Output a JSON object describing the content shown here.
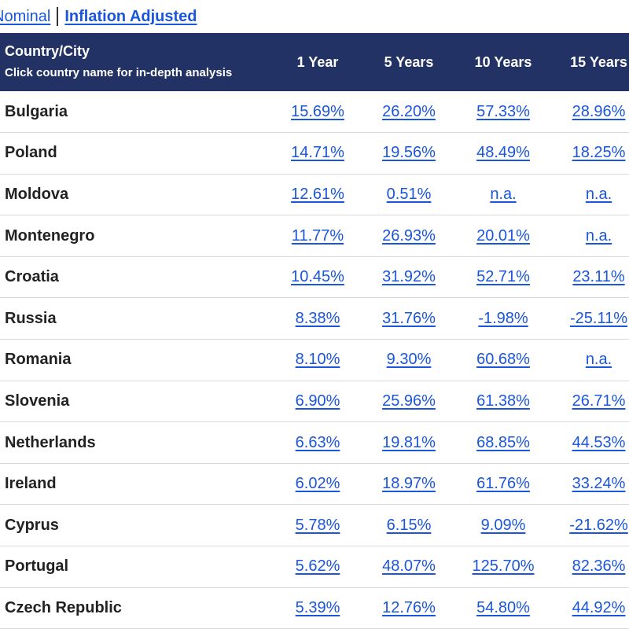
{
  "toggle": {
    "nominal_label": "Nominal",
    "inflation_label": "Inflation Adjusted"
  },
  "table": {
    "header": {
      "country_title": "Country/City",
      "country_subtitle": "Click country name for in-depth analysis",
      "col_1": "1 Year",
      "col_5": "5 Years",
      "col_10": "10 Years",
      "col_15": "15 Years"
    },
    "rows": [
      {
        "country": "Bulgaria",
        "y1": "15.69%",
        "y5": "26.20%",
        "y10": "57.33%",
        "y15": "28.96%"
      },
      {
        "country": "Poland",
        "y1": "14.71%",
        "y5": "19.56%",
        "y10": "48.49%",
        "y15": "18.25%"
      },
      {
        "country": "Moldova",
        "y1": "12.61%",
        "y5": "0.51%",
        "y10": "n.a.",
        "y15": "n.a."
      },
      {
        "country": "Montenegro",
        "y1": "11.77%",
        "y5": "26.93%",
        "y10": "20.01%",
        "y15": "n.a."
      },
      {
        "country": "Croatia",
        "y1": "10.45%",
        "y5": "31.92%",
        "y10": "52.71%",
        "y15": "23.11%"
      },
      {
        "country": "Russia",
        "y1": "8.38%",
        "y5": "31.76%",
        "y10": "-1.98%",
        "y15": "-25.11%"
      },
      {
        "country": "Romania",
        "y1": "8.10%",
        "y5": "9.30%",
        "y10": "60.68%",
        "y15": "n.a."
      },
      {
        "country": "Slovenia",
        "y1": "6.90%",
        "y5": "25.96%",
        "y10": "61.38%",
        "y15": "26.71%"
      },
      {
        "country": "Netherlands",
        "y1": "6.63%",
        "y5": "19.81%",
        "y10": "68.85%",
        "y15": "44.53%"
      },
      {
        "country": "Ireland",
        "y1": "6.02%",
        "y5": "18.97%",
        "y10": "61.76%",
        "y15": "33.24%"
      },
      {
        "country": "Cyprus",
        "y1": "5.78%",
        "y5": "6.15%",
        "y10": "9.09%",
        "y15": "-21.62%"
      },
      {
        "country": "Portugal",
        "y1": "5.62%",
        "y5": "48.07%",
        "y10": "125.70%",
        "y15": "82.36%"
      },
      {
        "country": "Czech Republic",
        "y1": "5.39%",
        "y5": "12.76%",
        "y10": "54.80%",
        "y15": "44.92%"
      }
    ]
  },
  "colors": {
    "header_bg": "#223265",
    "link": "#1a56db",
    "row_border": "#d9d9d9"
  }
}
